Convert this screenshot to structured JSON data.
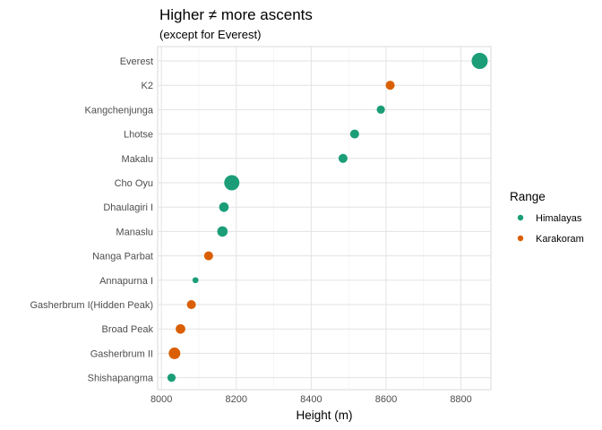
{
  "chart_data": {
    "type": "scatter",
    "title": "Higher ≠ more ascents",
    "subtitle": "(except for Everest)",
    "xlabel": "Height (m)",
    "ylabel": "",
    "xlim": [
      7990,
      8880
    ],
    "xticks": [
      8000,
      8200,
      8400,
      8600,
      8800
    ],
    "grid": true,
    "legend": {
      "title": "Range",
      "position": "right",
      "entries": [
        {
          "name": "Himalayas",
          "color": "#1b9e77"
        },
        {
          "name": "Karakoram",
          "color": "#d95f02"
        }
      ]
    },
    "categories": [
      "Everest",
      "K2",
      "Kangchenjunga",
      "Lhotse",
      "Makalu",
      "Cho Oyu",
      "Dhaulagiri I",
      "Manaslu",
      "Nanga Parbat",
      "Annapurna I",
      "Gasherbrum I(Hidden Peak)",
      "Broad Peak",
      "Gasherbrum II",
      "Shishapangma"
    ],
    "points": [
      {
        "peak": "Everest",
        "height": 8850,
        "range": "Himalayas",
        "ascents": 145
      },
      {
        "peak": "K2",
        "height": 8611,
        "range": "Karakoram",
        "ascents": 45
      },
      {
        "peak": "Kangchenjunga",
        "height": 8586,
        "range": "Himalayas",
        "ascents": 38
      },
      {
        "peak": "Lhotse",
        "height": 8516,
        "range": "Himalayas",
        "ascents": 45
      },
      {
        "peak": "Makalu",
        "height": 8485,
        "range": "Himalayas",
        "ascents": 45
      },
      {
        "peak": "Cho Oyu",
        "height": 8188,
        "range": "Himalayas",
        "ascents": 129
      },
      {
        "peak": "Dhaulagiri I",
        "height": 8167,
        "range": "Himalayas",
        "ascents": 51
      },
      {
        "peak": "Manaslu",
        "height": 8163,
        "range": "Himalayas",
        "ascents": 60
      },
      {
        "peak": "Nanga Parbat",
        "height": 8126,
        "range": "Karakoram",
        "ascents": 45
      },
      {
        "peak": "Annapurna I",
        "height": 8091,
        "range": "Himalayas",
        "ascents": 20
      },
      {
        "peak": "Gasherbrum I(Hidden Peak)",
        "height": 8080,
        "range": "Karakoram",
        "ascents": 45
      },
      {
        "peak": "Broad Peak",
        "height": 8051,
        "range": "Karakoram",
        "ascents": 51
      },
      {
        "peak": "Gasherbrum II",
        "height": 8035,
        "range": "Karakoram",
        "ascents": 75
      },
      {
        "peak": "Shishapangma",
        "height": 8027,
        "range": "Himalayas",
        "ascents": 38
      }
    ]
  }
}
